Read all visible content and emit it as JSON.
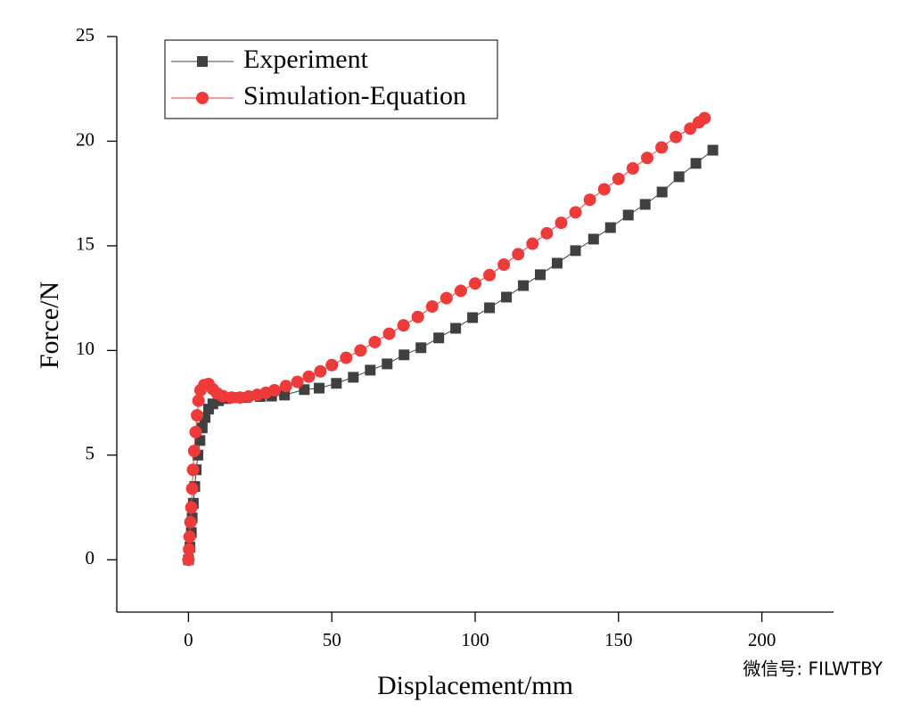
{
  "chart_data": {
    "type": "line",
    "xlabel": "Displacement/mm",
    "ylabel": "Force/N",
    "xlim": [
      -25,
      225
    ],
    "xticks": [
      0,
      50,
      100,
      150,
      200
    ],
    "ylim": [
      -2.5,
      25
    ],
    "yticks": [
      0,
      5,
      10,
      15,
      20,
      25
    ],
    "legend": "upper left",
    "series": [
      {
        "name": "Experiment",
        "color": "#404040",
        "marker": "square",
        "x": [
          0,
          0.5,
          1,
          1.3,
          1.7,
          2.2,
          2.7,
          3.3,
          4,
          4.8,
          5.8,
          7,
          8.5,
          10.5,
          13,
          16,
          20,
          25,
          29,
          33.5,
          40.4,
          45.6,
          51.6,
          57.5,
          63.4,
          69.3,
          75.2,
          81.1,
          87.3,
          93.2,
          99.1,
          105,
          110.9,
          116.8,
          122.7,
          128.6,
          135,
          141.3,
          147.2,
          153.4,
          159.3,
          165.2,
          171.1,
          177,
          182.9
        ],
        "values": [
          0,
          0.6,
          1.3,
          2.0,
          2.7,
          3.5,
          4.3,
          5.0,
          5.7,
          6.3,
          6.8,
          7.2,
          7.45,
          7.6,
          7.7,
          7.75,
          7.75,
          7.8,
          7.82,
          7.87,
          8.13,
          8.2,
          8.43,
          8.72,
          9.06,
          9.36,
          9.79,
          10.13,
          10.6,
          11.06,
          11.57,
          12.04,
          12.55,
          13.1,
          13.62,
          14.17,
          14.77,
          15.32,
          15.87,
          16.47,
          16.98,
          17.57,
          18.3,
          18.94,
          19.57
        ]
      },
      {
        "name": "Simulation-Equation",
        "color": "#ef3a3a",
        "marker": "circle",
        "x": [
          0,
          0.2,
          0.4,
          0.7,
          1,
          1.3,
          1.6,
          2,
          2.5,
          3,
          3.5,
          4.2,
          5.5,
          7,
          8.5,
          10,
          12,
          15,
          18,
          21,
          24,
          27,
          30,
          34,
          38,
          42,
          46,
          50,
          55,
          60,
          65,
          70,
          75,
          80,
          85,
          90,
          95,
          100,
          105,
          110,
          115,
          120,
          125,
          130,
          135,
          140,
          145,
          150,
          155,
          160,
          165,
          170,
          175,
          178,
          180
        ],
        "values": [
          0,
          0.5,
          1.1,
          1.8,
          2.5,
          3.4,
          4.3,
          5.2,
          6.1,
          6.9,
          7.6,
          8.1,
          8.35,
          8.4,
          8.15,
          7.95,
          7.82,
          7.75,
          7.75,
          7.8,
          7.88,
          7.98,
          8.1,
          8.3,
          8.5,
          8.75,
          9.0,
          9.3,
          9.65,
          10.0,
          10.4,
          10.8,
          11.2,
          11.6,
          12.1,
          12.5,
          12.85,
          13.2,
          13.6,
          14.1,
          14.6,
          15.1,
          15.6,
          16.1,
          16.6,
          17.2,
          17.7,
          18.2,
          18.7,
          19.2,
          19.7,
          20.2,
          20.6,
          20.9,
          21.1
        ]
      }
    ]
  },
  "watermark": "微信号: FILWTBY"
}
